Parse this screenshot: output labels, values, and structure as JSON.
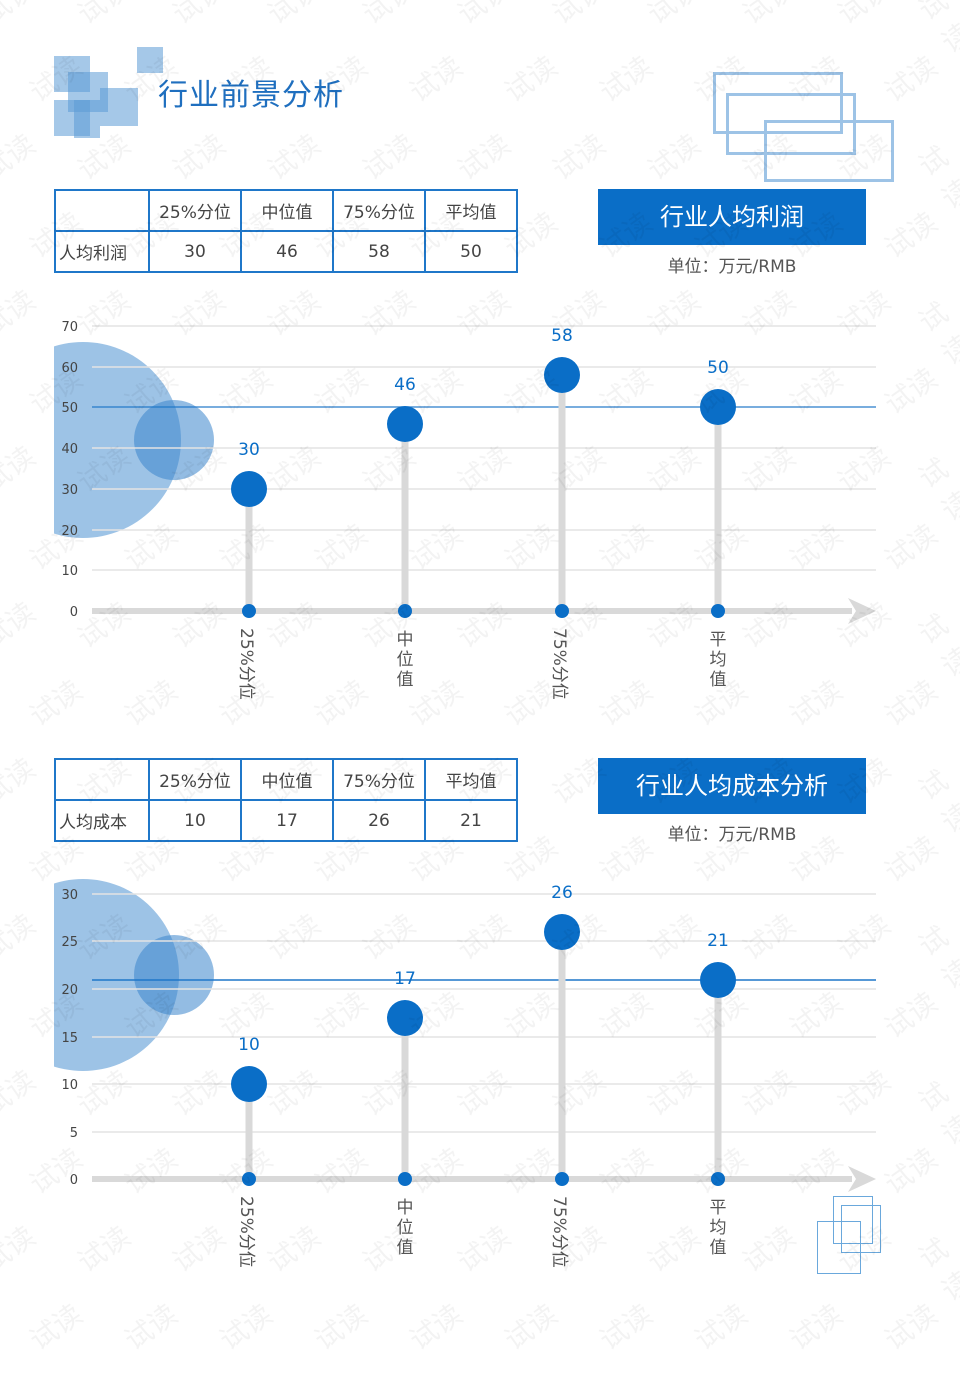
{
  "page": {
    "title": "行业前景分析"
  },
  "profit_section": {
    "table": {
      "headers": [
        "",
        "25%分位",
        "中位值",
        "75%分位",
        "平均值"
      ],
      "row_label": "人均利润",
      "values": [
        "30",
        "46",
        "58",
        "50"
      ]
    },
    "banner": "行业人均利润",
    "unit": "单位：万元/RMB"
  },
  "cost_section": {
    "table": {
      "headers": [
        "",
        "25%分位",
        "中位值",
        "75%分位",
        "平均值"
      ],
      "row_label": "人均成本",
      "values": [
        "10",
        "17",
        "26",
        "21"
      ]
    },
    "banner": "行业人均成本分析",
    "unit": "单位：万元/RMB"
  },
  "watermark_text": "试读",
  "colors": {
    "accent": "#0a6ec7",
    "dot": "#0a6ec7",
    "stem": "#d9d9d9",
    "gridline": "#e3e3e3",
    "reference_line": "#1f77c9",
    "bubble": "#5b9bd5"
  },
  "chart_data": [
    {
      "type": "scatter",
      "subtype": "lollipop",
      "title": "行业人均利润",
      "categories": [
        "25%分位",
        "中位值",
        "75%分位",
        "平均值"
      ],
      "values": [
        30,
        46,
        58,
        50
      ],
      "data_labels": [
        "30",
        "46",
        "58",
        "50"
      ],
      "ylabel": "万元/RMB",
      "ylim": [
        0,
        70
      ],
      "yticks": [
        0,
        10,
        20,
        30,
        40,
        50,
        60,
        70
      ],
      "reference_line": 50,
      "grid": true,
      "legend": "none"
    },
    {
      "type": "scatter",
      "subtype": "lollipop",
      "title": "行业人均成本分析",
      "categories": [
        "25%分位",
        "中位值",
        "75%分位",
        "平均值"
      ],
      "values": [
        10,
        17,
        26,
        21
      ],
      "data_labels": [
        "10",
        "17",
        "26",
        "21"
      ],
      "ylabel": "万元/RMB",
      "ylim": [
        0,
        30
      ],
      "yticks": [
        0,
        5,
        10,
        15,
        20,
        25,
        30
      ],
      "reference_line": 21,
      "grid": true,
      "legend": "none"
    }
  ]
}
